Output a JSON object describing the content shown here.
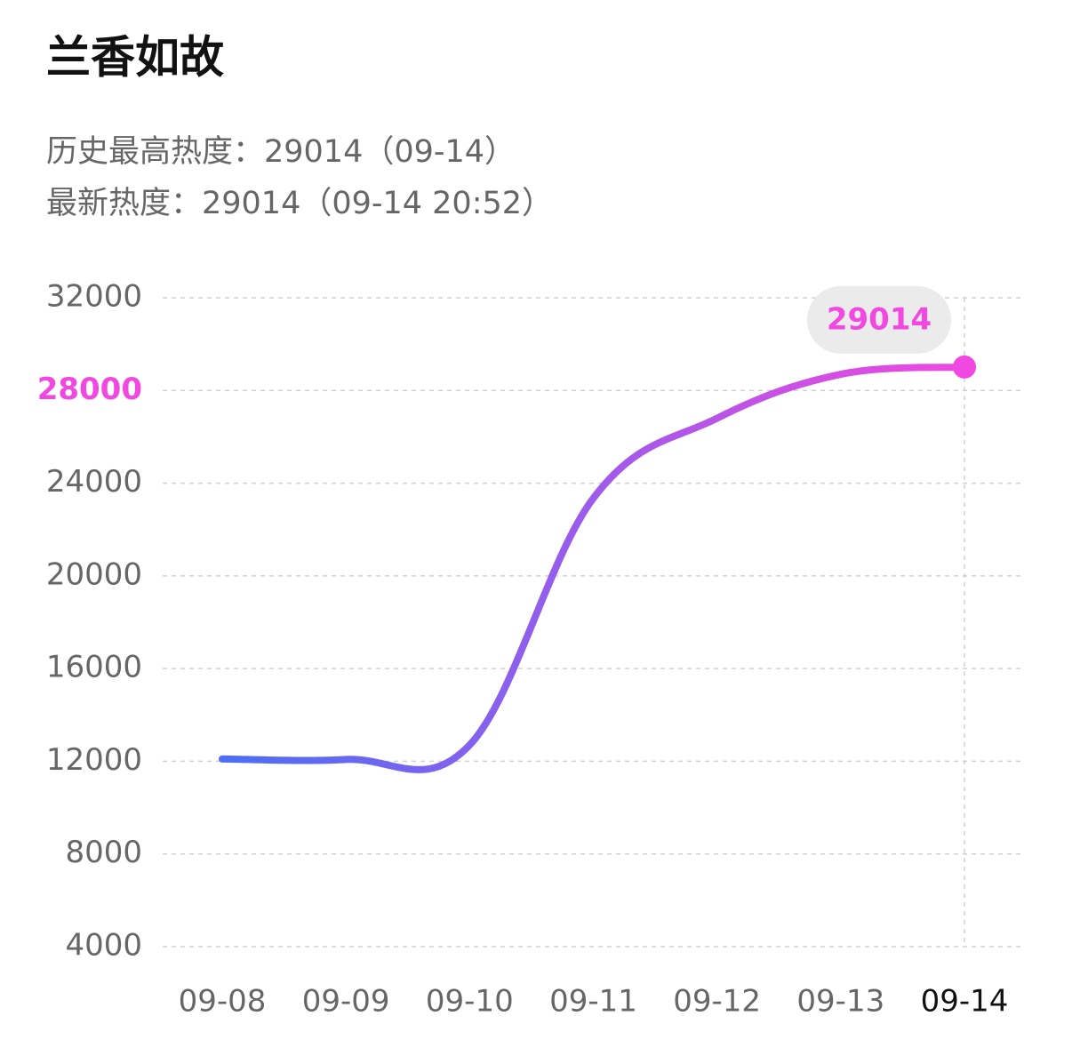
{
  "header": {
    "title": "兰香如故",
    "info_lines": [
      "历史最高热度：29014（09-14）",
      "最新热度：29014（09-14 20:52）"
    ]
  },
  "chart_data": {
    "type": "line",
    "categories": [
      "09-08",
      "09-09",
      "09-10",
      "09-11",
      "09-12",
      "09-13",
      "09-14"
    ],
    "series": [
      {
        "values": [
          12100,
          12080,
          12700,
          23350,
          26800,
          28700,
          29014
        ],
        "color": "#f048e0",
        "gradient_start": "#4c6ef5"
      }
    ],
    "ylim": [
      4000,
      32000
    ],
    "yticks": [
      4000,
      8000,
      12000,
      16000,
      20000,
      24000,
      28000,
      32000
    ],
    "grid": true,
    "highlight_index": 6
  }
}
